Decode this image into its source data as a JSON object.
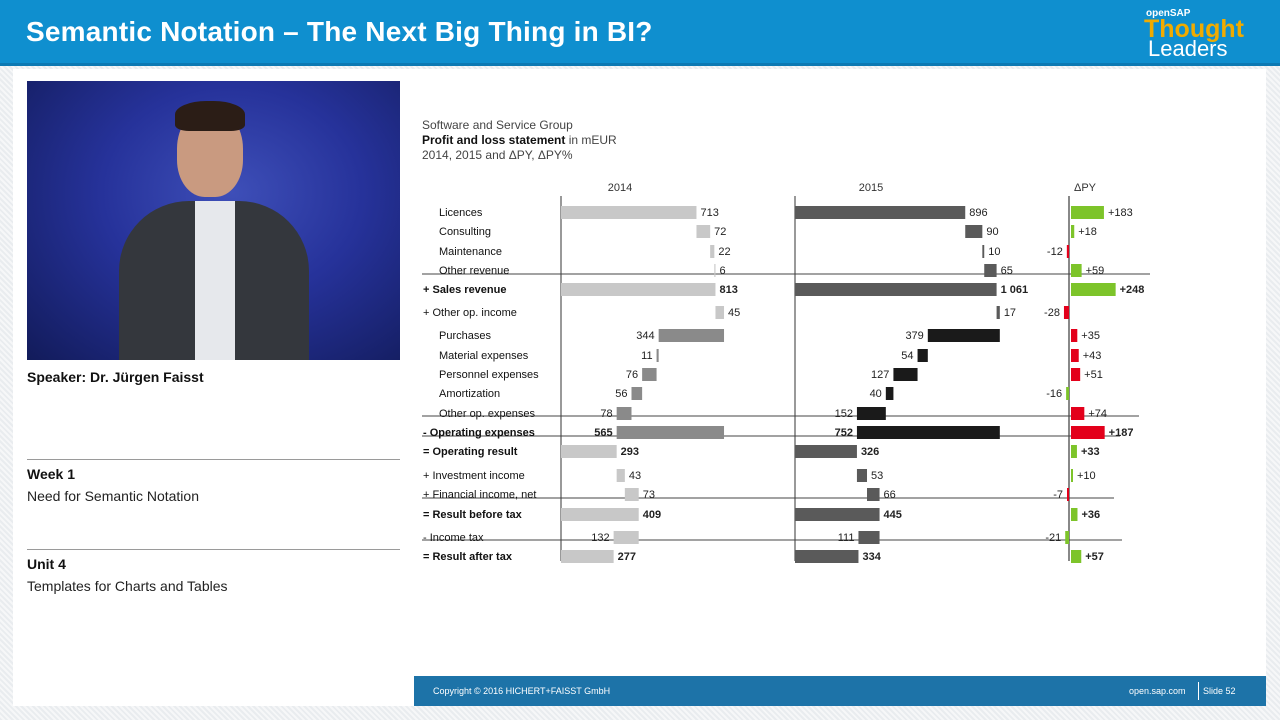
{
  "header": {
    "title": "Semantic Notation – The Next Big Thing in BI?",
    "logo_small": "openSAP",
    "logo_main": "Thought",
    "logo_sub": "Leaders",
    "color": "#0f8fcf"
  },
  "left": {
    "speaker": "Speaker: Dr. Jürgen Faisst",
    "week_label": "Week 1",
    "week_title": "Need for Semantic Notation",
    "unit_label": "Unit 4",
    "unit_title": "Templates for Charts and Tables"
  },
  "slide": {
    "company": "Software and Service Group",
    "statement_bold": "Profit and loss statement",
    "statement_unit": " in mEUR",
    "periods": "2014, 2015 and ΔPY, ΔPY%",
    "footer_copyright": "Copyright © 2016 HICHERT+FAISST GmbH",
    "footer_site": "open.sap.com",
    "footer_slide": "Slide 52"
  },
  "chart_data": {
    "type": "bar",
    "title": "Profit and loss statement",
    "columns": [
      "2014",
      "2015",
      "ΔPY"
    ],
    "colors": {
      "py_light": "#c8c8c8",
      "py_mid": "#8a8a8a",
      "cy_dark": "#5a5a5a",
      "cy_black": "#1a1a1a",
      "pos": "#7dc42a",
      "neg": "#e3001b"
    },
    "rows": [
      {
        "label": "Licences",
        "v2014": "713",
        "v2015": "896",
        "delta": "+183",
        "d": 183
      },
      {
        "label": "Consulting",
        "v2014": "72",
        "v2015": "90",
        "delta": "+18",
        "d": 18
      },
      {
        "label": "Maintenance",
        "v2014": "22",
        "v2015": "10",
        "delta": "-12",
        "d": -12
      },
      {
        "label": "Other revenue",
        "v2014": "6",
        "v2015": "65",
        "delta": "+59",
        "d": 59
      },
      {
        "label": "+ Sales revenue",
        "v2014": "813",
        "v2015": "1 061",
        "delta": "+248",
        "d": 248,
        "bold": true
      },
      {
        "label": "+ Other op. income",
        "v2014": "45",
        "v2015": "17",
        "delta": "-28",
        "d": -28
      },
      {
        "label": "Purchases",
        "v2014": "344",
        "v2015": "379",
        "delta": "+35",
        "d": 35
      },
      {
        "label": "Material expenses",
        "v2014": "11",
        "v2015": "54",
        "delta": "+43",
        "d": 43
      },
      {
        "label": "Personnel expenses",
        "v2014": "76",
        "v2015": "127",
        "delta": "+51",
        "d": 51
      },
      {
        "label": "Amortization",
        "v2014": "56",
        "v2015": "40",
        "delta": "-16",
        "d": -16
      },
      {
        "label": "Other op. expenses",
        "v2014": "78",
        "v2015": "152",
        "delta": "+74",
        "d": 74
      },
      {
        "label": "- Operating expenses",
        "v2014": "565",
        "v2015": "752",
        "delta": "+187",
        "d": 187,
        "bold": true
      },
      {
        "label": "= Operating result",
        "v2014": "293",
        "v2015": "326",
        "delta": "+33",
        "d": 33,
        "bold": true
      },
      {
        "label": "+ Investment income",
        "v2014": "43",
        "v2015": "53",
        "delta": "+10",
        "d": 10
      },
      {
        "label": "+ Financial income, net",
        "v2014": "73",
        "v2015": "66",
        "delta": "-7",
        "d": -7
      },
      {
        "label": "= Result before tax",
        "v2014": "409",
        "v2015": "445",
        "delta": "+36",
        "d": 36,
        "bold": true
      },
      {
        "label": "- Income tax",
        "v2014": "132",
        "v2015": "111",
        "delta": "-21",
        "d": -21
      },
      {
        "label": "= Result after tax",
        "v2014": "277",
        "v2015": "334",
        "delta": "+57",
        "d": 57,
        "bold": true
      }
    ]
  }
}
